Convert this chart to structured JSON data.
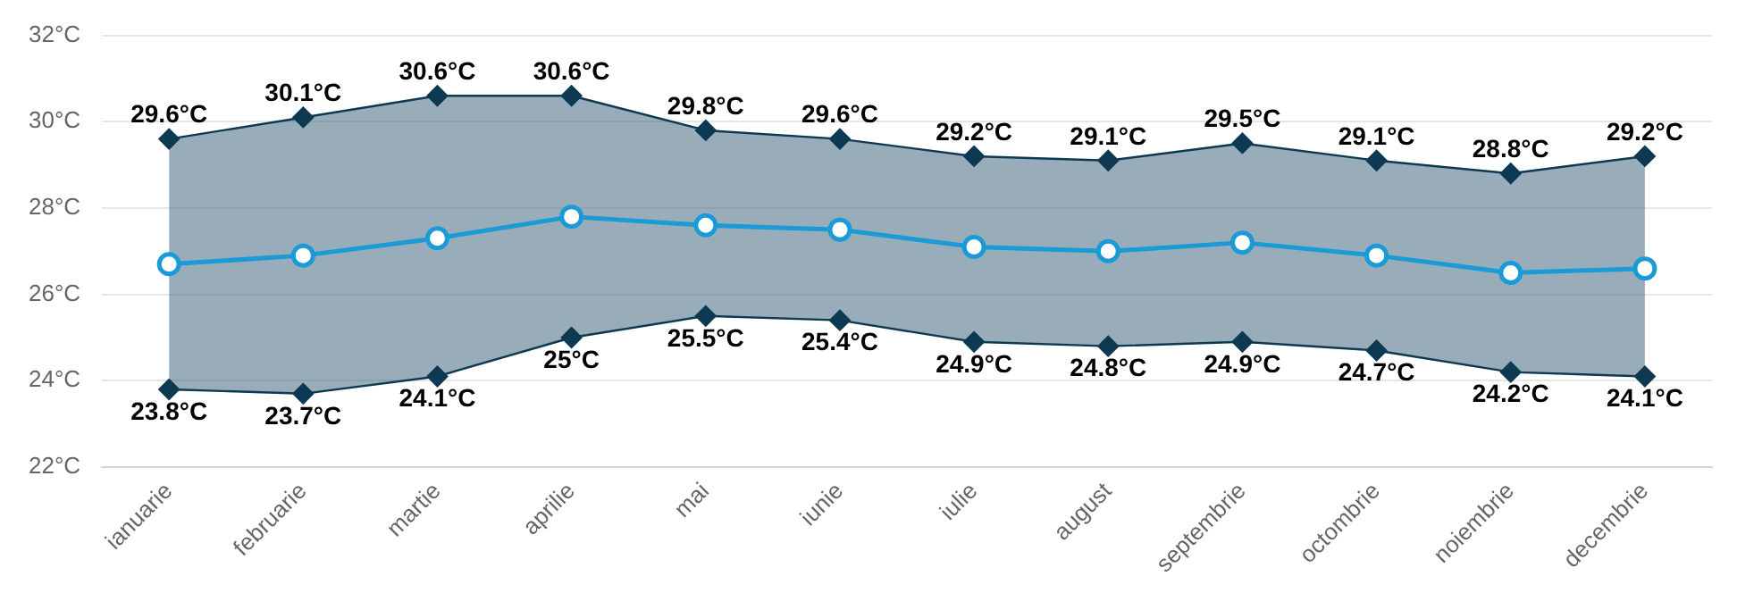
{
  "chart_data": {
    "type": "line",
    "categories": [
      "ianuarie",
      "februarie",
      "martie",
      "aprilie",
      "mai",
      "iunie",
      "iulie",
      "august",
      "septembrie",
      "octombrie",
      "noiembrie",
      "decembrie"
    ],
    "series": [
      {
        "color": "#0d3a52",
        "marker": "diamond",
        "values": [
          29.6,
          30.1,
          30.6,
          30.6,
          29.8,
          29.6,
          29.2,
          29.1,
          29.5,
          29.1,
          28.8,
          29.2
        ],
        "value_labels": [
          "29.6°C",
          "30.1°C",
          "30.6°C",
          "30.6°C",
          "29.8°C",
          "29.6°C",
          "29.2°C",
          "29.1°C",
          "29.5°C",
          "29.1°C",
          "28.8°C",
          "29.2°C"
        ]
      },
      {
        "color": "#0d3a52",
        "marker": "diamond",
        "values": [
          23.8,
          23.7,
          24.1,
          25,
          25.5,
          25.4,
          24.9,
          24.8,
          24.9,
          24.7,
          24.2,
          24.1
        ],
        "value_labels": [
          "23.8°C",
          "23.7°C",
          "24.1°C",
          "25°C",
          "25.5°C",
          "25.4°C",
          "24.9°C",
          "24.8°C",
          "24.9°C",
          "24.7°C",
          "24.2°C",
          "24.1°C"
        ]
      },
      {
        "color": "#1a9ad6",
        "marker": "circle",
        "values": [
          26.7,
          26.9,
          27.3,
          27.8,
          27.6,
          27.5,
          27.1,
          27.0,
          27.2,
          26.9,
          26.5,
          26.6
        ],
        "lower": [
          23.8,
          23.7,
          24.1,
          25,
          25.5,
          25.4,
          24.9,
          24.8,
          24.9,
          24.7,
          24.2,
          24.1
        ],
        "upper": [
          29.6,
          30.1,
          30.6,
          30.6,
          29.8,
          29.6,
          29.2,
          29.1,
          29.5,
          29.1,
          28.8,
          29.2
        ]
      }
    ],
    "ylim": [
      22,
      32
    ],
    "yticks": [
      {
        "value": 22,
        "label": "22°C"
      },
      {
        "value": 24,
        "label": "24°C"
      },
      {
        "value": 26,
        "label": "26°C"
      },
      {
        "value": 28,
        "label": "28°C"
      },
      {
        "value": 30,
        "label": "30°C"
      },
      {
        "value": 32,
        "label": "32°C"
      }
    ],
    "grid": "y",
    "legend": false
  }
}
